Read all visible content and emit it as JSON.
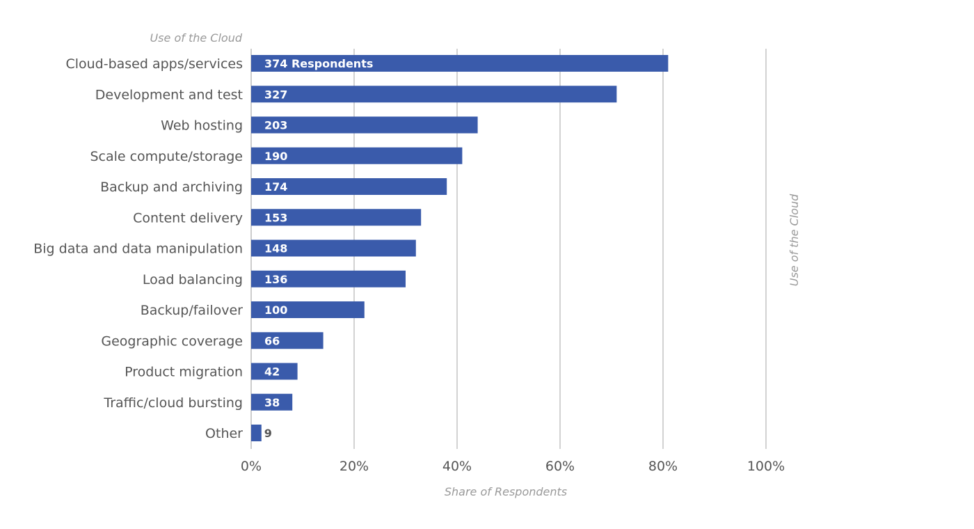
{
  "chart_data": {
    "type": "bar",
    "orientation": "horizontal",
    "title": "Use of the Cloud",
    "side_label": "Use of the Cloud",
    "xlabel": "Share of Respondents",
    "ylabel": "",
    "xlim": [
      0,
      100
    ],
    "x_ticks": [
      "0%",
      "20%",
      "40%",
      "60%",
      "80%",
      "100%"
    ],
    "x_tick_values": [
      0,
      20,
      40,
      60,
      80,
      100
    ],
    "grid": true,
    "bar_color": "#3a5bab",
    "categories": [
      "Cloud-based apps/services",
      "Development and test",
      "Web hosting",
      "Scale compute/storage",
      "Backup and archiving",
      "Content delivery",
      "Big data and data manipulation",
      "Load balancing",
      "Backup/failover",
      "Geographic coverage",
      "Product migration",
      "Traffic/cloud bursting",
      "Other"
    ],
    "values": [
      81,
      71,
      44,
      41,
      38,
      33,
      32,
      30,
      22,
      14,
      9,
      8,
      2
    ],
    "data_labels": [
      "374 Respondents",
      "327",
      "203",
      "190",
      "174",
      "153",
      "148",
      "136",
      "100",
      "66",
      "42",
      "38",
      "9"
    ]
  }
}
